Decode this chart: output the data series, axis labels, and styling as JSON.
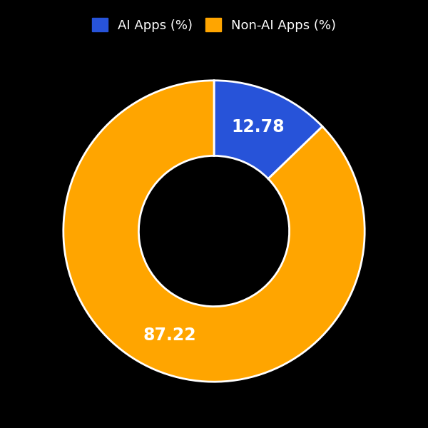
{
  "labels": [
    "AI Apps (%)",
    "Non-AI Apps (%)"
  ],
  "values": [
    12.78,
    87.22
  ],
  "colors": [
    "#2753d9",
    "#FFA500"
  ],
  "text_labels": [
    "12.78",
    "87.22"
  ],
  "background_color": "#000000",
  "wedge_edge_color": "#ffffff",
  "donut_hole_ratio": 0.5,
  "figsize": [
    6.0,
    6.0
  ],
  "dpi": 100,
  "label_fontsize": 17,
  "legend_fontsize": 13
}
